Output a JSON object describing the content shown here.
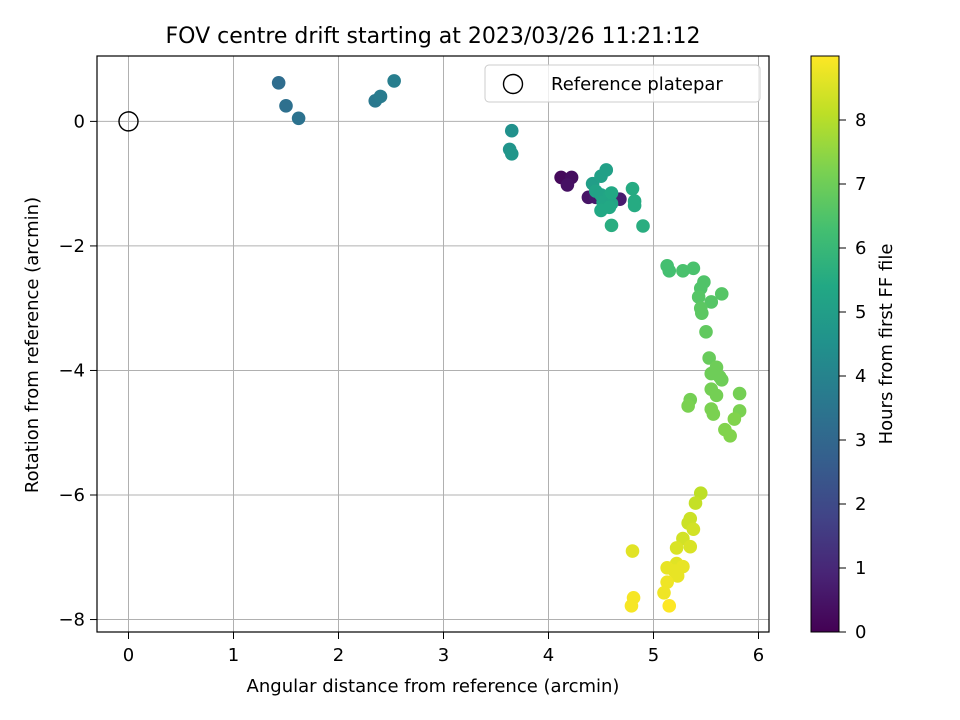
{
  "chart_data": {
    "type": "scatter",
    "title": "FOV centre drift starting at 2023/03/26 11:21:12",
    "xlabel": "Angular distance from reference (arcmin)",
    "ylabel": "Rotation from reference (arcmin)",
    "xlim": [
      -0.3,
      6.1
    ],
    "ylim": [
      -8.2,
      1.05
    ],
    "xticks": [
      0,
      1,
      2,
      3,
      4,
      5,
      6
    ],
    "yticks": [
      0,
      -2,
      -4,
      -6,
      -8
    ],
    "xtick_labels": [
      "0",
      "1",
      "2",
      "3",
      "4",
      "5",
      "6"
    ],
    "ytick_labels": [
      "0",
      "−2",
      "−4",
      "−6",
      "−8"
    ],
    "grid": true,
    "legend": {
      "position": "top-right",
      "label": "Reference platepar"
    },
    "reference_point": {
      "x": 0,
      "y": 0
    },
    "colorbar": {
      "label": "Hours from first FF file",
      "colormap": "viridis",
      "range": [
        0,
        9.0
      ],
      "ticks": [
        0,
        1,
        2,
        3,
        4,
        5,
        6,
        7,
        8
      ],
      "tick_labels": [
        "0",
        "1",
        "2",
        "3",
        "4",
        "5",
        "6",
        "7",
        "8"
      ]
    },
    "points": [
      {
        "x": 4.12,
        "y": -0.9,
        "h": 0.2
      },
      {
        "x": 4.22,
        "y": -0.9,
        "h": 0.3
      },
      {
        "x": 4.18,
        "y": -1.02,
        "h": 0.4
      },
      {
        "x": 4.38,
        "y": -1.22,
        "h": 0.5
      },
      {
        "x": 4.45,
        "y": -1.22,
        "h": 0.6
      },
      {
        "x": 4.68,
        "y": -1.25,
        "h": 0.7
      },
      {
        "x": 4.62,
        "y": -1.22,
        "h": 0.8
      },
      {
        "x": 1.43,
        "y": 0.62,
        "h": 3.2
      },
      {
        "x": 1.5,
        "y": 0.25,
        "h": 3.3
      },
      {
        "x": 1.62,
        "y": 0.05,
        "h": 3.4
      },
      {
        "x": 2.35,
        "y": 0.33,
        "h": 3.6
      },
      {
        "x": 2.4,
        "y": 0.4,
        "h": 3.7
      },
      {
        "x": 2.53,
        "y": 0.65,
        "h": 3.8
      },
      {
        "x": 3.65,
        "y": -0.15,
        "h": 4.5
      },
      {
        "x": 3.63,
        "y": -0.45,
        "h": 4.6
      },
      {
        "x": 3.65,
        "y": -0.52,
        "h": 4.7
      },
      {
        "x": 4.42,
        "y": -1.0,
        "h": 5.0
      },
      {
        "x": 4.5,
        "y": -0.88,
        "h": 5.1
      },
      {
        "x": 4.55,
        "y": -0.78,
        "h": 5.1
      },
      {
        "x": 4.45,
        "y": -1.12,
        "h": 5.2
      },
      {
        "x": 4.5,
        "y": -1.18,
        "h": 5.2
      },
      {
        "x": 4.58,
        "y": -1.2,
        "h": 5.3
      },
      {
        "x": 4.52,
        "y": -1.3,
        "h": 5.3
      },
      {
        "x": 4.6,
        "y": -1.32,
        "h": 5.3
      },
      {
        "x": 4.5,
        "y": -1.43,
        "h": 5.4
      },
      {
        "x": 4.58,
        "y": -1.38,
        "h": 5.4
      },
      {
        "x": 4.6,
        "y": -1.15,
        "h": 5.4
      },
      {
        "x": 4.8,
        "y": -1.08,
        "h": 5.5
      },
      {
        "x": 4.82,
        "y": -1.28,
        "h": 5.5
      },
      {
        "x": 4.82,
        "y": -1.35,
        "h": 5.5
      },
      {
        "x": 4.6,
        "y": -1.67,
        "h": 5.6
      },
      {
        "x": 4.9,
        "y": -1.68,
        "h": 5.6
      },
      {
        "x": 5.13,
        "y": -2.32,
        "h": 6.3
      },
      {
        "x": 5.15,
        "y": -2.4,
        "h": 6.3
      },
      {
        "x": 5.28,
        "y": -2.4,
        "h": 6.4
      },
      {
        "x": 5.38,
        "y": -2.36,
        "h": 6.4
      },
      {
        "x": 5.48,
        "y": -2.58,
        "h": 6.5
      },
      {
        "x": 5.45,
        "y": -2.68,
        "h": 6.5
      },
      {
        "x": 5.43,
        "y": -2.82,
        "h": 6.6
      },
      {
        "x": 5.55,
        "y": -2.9,
        "h": 6.6
      },
      {
        "x": 5.65,
        "y": -2.77,
        "h": 6.6
      },
      {
        "x": 5.45,
        "y": -3.0,
        "h": 6.7
      },
      {
        "x": 5.46,
        "y": -3.08,
        "h": 6.7
      },
      {
        "x": 5.5,
        "y": -3.38,
        "h": 6.8
      },
      {
        "x": 5.53,
        "y": -3.8,
        "h": 6.9
      },
      {
        "x": 5.6,
        "y": -3.95,
        "h": 7.0
      },
      {
        "x": 5.55,
        "y": -4.05,
        "h": 7.0
      },
      {
        "x": 5.63,
        "y": -4.1,
        "h": 7.0
      },
      {
        "x": 5.65,
        "y": -4.15,
        "h": 7.0
      },
      {
        "x": 5.55,
        "y": -4.3,
        "h": 7.1
      },
      {
        "x": 5.6,
        "y": -4.4,
        "h": 7.1
      },
      {
        "x": 5.82,
        "y": -4.37,
        "h": 7.1
      },
      {
        "x": 5.35,
        "y": -4.47,
        "h": 7.1
      },
      {
        "x": 5.33,
        "y": -4.57,
        "h": 7.2
      },
      {
        "x": 5.55,
        "y": -4.62,
        "h": 7.2
      },
      {
        "x": 5.57,
        "y": -4.7,
        "h": 7.2
      },
      {
        "x": 5.82,
        "y": -4.65,
        "h": 7.2
      },
      {
        "x": 5.77,
        "y": -4.78,
        "h": 7.3
      },
      {
        "x": 5.68,
        "y": -4.95,
        "h": 7.3
      },
      {
        "x": 5.73,
        "y": -5.05,
        "h": 7.3
      },
      {
        "x": 5.45,
        "y": -5.97,
        "h": 8.1
      },
      {
        "x": 5.4,
        "y": -6.13,
        "h": 8.2
      },
      {
        "x": 5.35,
        "y": -6.38,
        "h": 8.3
      },
      {
        "x": 5.33,
        "y": -6.45,
        "h": 8.3
      },
      {
        "x": 5.38,
        "y": -6.55,
        "h": 8.4
      },
      {
        "x": 5.28,
        "y": -6.7,
        "h": 8.4
      },
      {
        "x": 5.35,
        "y": -6.83,
        "h": 8.5
      },
      {
        "x": 5.22,
        "y": -6.85,
        "h": 8.5
      },
      {
        "x": 4.8,
        "y": -6.9,
        "h": 8.6
      },
      {
        "x": 5.22,
        "y": -7.1,
        "h": 8.6
      },
      {
        "x": 5.28,
        "y": -7.15,
        "h": 8.7
      },
      {
        "x": 5.13,
        "y": -7.17,
        "h": 8.7
      },
      {
        "x": 5.2,
        "y": -7.22,
        "h": 8.7
      },
      {
        "x": 5.23,
        "y": -7.3,
        "h": 8.7
      },
      {
        "x": 5.13,
        "y": -7.4,
        "h": 8.8
      },
      {
        "x": 5.1,
        "y": -7.57,
        "h": 8.8
      },
      {
        "x": 4.81,
        "y": -7.65,
        "h": 8.9
      },
      {
        "x": 4.79,
        "y": -7.78,
        "h": 8.9
      },
      {
        "x": 5.15,
        "y": -7.78,
        "h": 9.0
      }
    ]
  }
}
